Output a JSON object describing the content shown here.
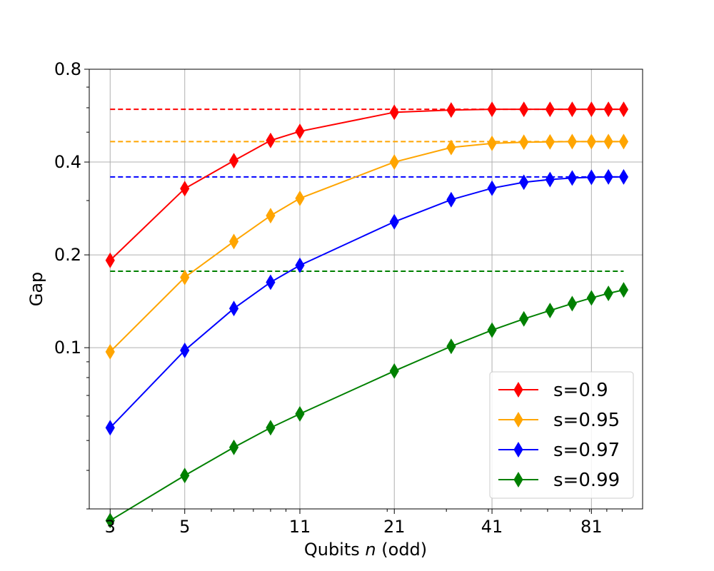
{
  "chart_data": {
    "type": "line",
    "title": "",
    "xlabel": "Qubits",
    "xlabel_var": "n",
    "xlabel_suffix": "(odd)",
    "ylabel": "Gap",
    "xscale": "log",
    "yscale": "log",
    "xlim": [
      2.6,
      115
    ],
    "ylim": [
      0.03,
      0.8
    ],
    "x_ticks": [
      3,
      5,
      11,
      21,
      41,
      81
    ],
    "x_tick_labels": [
      "3",
      "5",
      "11",
      "21",
      "41",
      "81"
    ],
    "y_ticks": [
      0.1,
      0.2,
      0.4,
      0.8
    ],
    "y_tick_labels": [
      "0.1",
      "0.2",
      "0.4",
      "0.8"
    ],
    "y_minor_ticks": [
      0.03,
      0.04,
      0.05,
      0.06,
      0.07,
      0.08,
      0.09,
      0.3,
      0.5,
      0.6,
      0.7
    ],
    "x_minor_ticks": [
      4,
      6,
      7,
      8,
      9,
      10,
      20,
      30,
      40,
      50,
      60,
      70,
      80,
      90,
      100
    ],
    "grid": true,
    "legend_position": "lower-right",
    "marker": "diamond",
    "x": [
      3,
      5,
      7,
      9,
      11,
      21,
      31,
      41,
      51,
      61,
      71,
      81,
      91,
      101
    ],
    "series": [
      {
        "name": "s=0.9",
        "color": "#ff0000",
        "values": [
          0.192,
          0.328,
          0.404,
          0.47,
          0.503,
          0.58,
          0.59,
          0.593,
          0.593,
          0.593,
          0.593,
          0.593,
          0.593,
          0.593
        ],
        "asymptote": 0.593
      },
      {
        "name": "s=0.95",
        "color": "#ffa500",
        "values": [
          0.097,
          0.169,
          0.221,
          0.268,
          0.305,
          0.4,
          0.446,
          0.46,
          0.464,
          0.465,
          0.466,
          0.466,
          0.466,
          0.466
        ],
        "asymptote": 0.466
      },
      {
        "name": "s=0.97",
        "color": "#0000ff",
        "values": [
          0.055,
          0.098,
          0.134,
          0.163,
          0.185,
          0.256,
          0.302,
          0.329,
          0.344,
          0.351,
          0.355,
          0.357,
          0.358,
          0.358
        ],
        "asymptote": 0.358
      },
      {
        "name": "s=0.99",
        "color": "#008000",
        "values": [
          0.0275,
          0.0385,
          0.0475,
          0.055,
          0.061,
          0.084,
          0.101,
          0.114,
          0.124,
          0.132,
          0.139,
          0.145,
          0.15,
          0.154
        ],
        "asymptote": 0.177
      }
    ]
  }
}
